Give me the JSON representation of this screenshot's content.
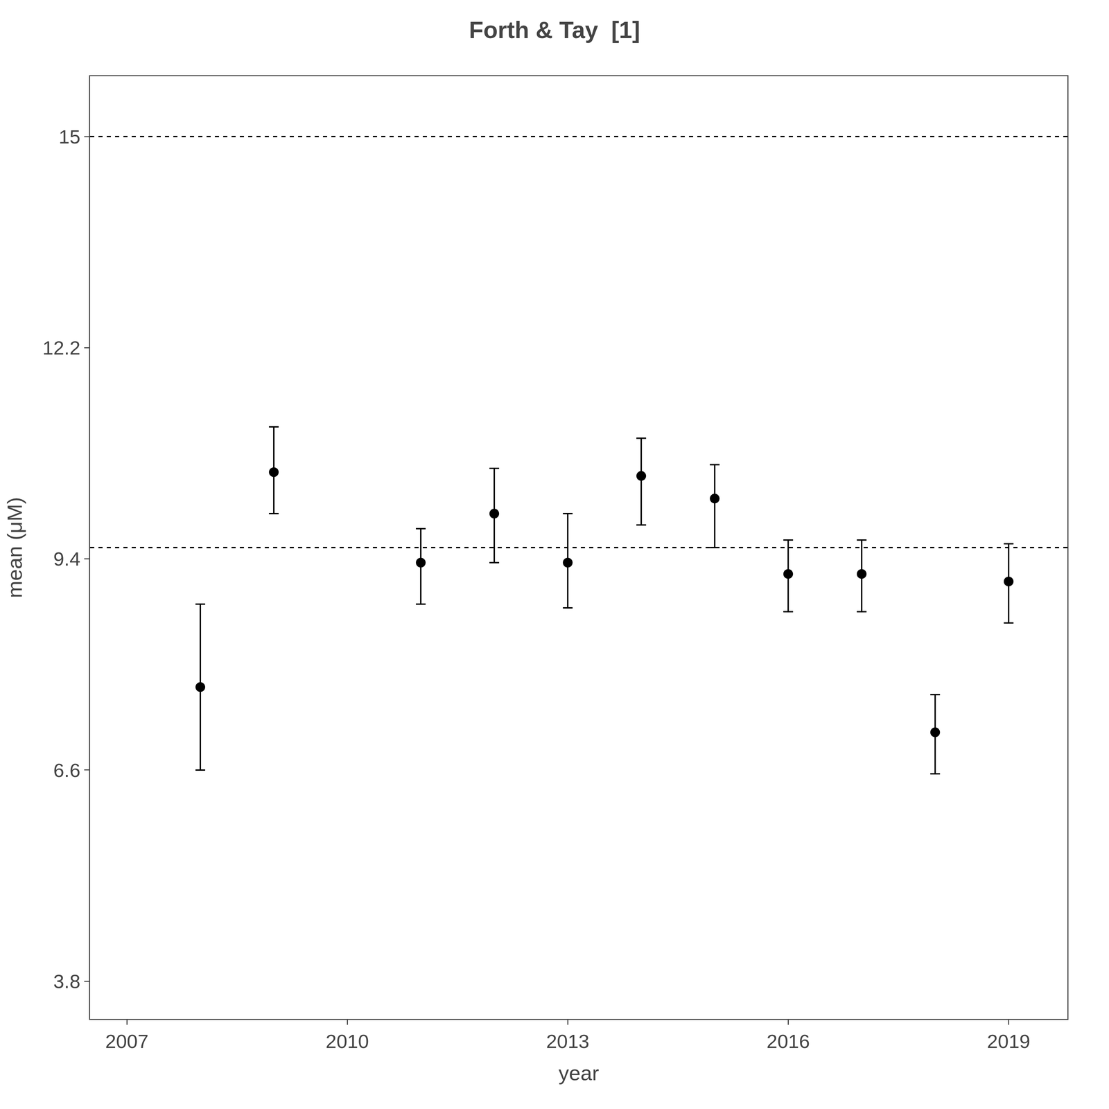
{
  "chart_data": {
    "type": "scatter",
    "title": "Forth & Tay  [1]",
    "x_label": "year",
    "y_label": "mean (μM)",
    "x": [
      2008,
      2009,
      2011,
      2012,
      2013,
      2014,
      2015,
      2016,
      2017,
      2018,
      2019
    ],
    "series": [
      {
        "values": [
          7.7,
          10.55,
          9.35,
          10.0,
          9.35,
          10.5,
          10.2,
          9.2,
          9.2,
          7.1,
          9.1
        ],
        "error_minus": [
          1.1,
          0.55,
          0.55,
          0.65,
          0.6,
          0.65,
          0.65,
          0.5,
          0.5,
          0.55,
          0.55
        ],
        "error_plus": [
          1.1,
          0.6,
          0.45,
          0.6,
          0.65,
          0.5,
          0.45,
          0.45,
          0.45,
          0.5,
          0.5
        ],
        "color": "black",
        "marker": "circle"
      }
    ],
    "reference_lines": [
      {
        "y": 15.0,
        "color": "black",
        "line_style": "dashed"
      },
      {
        "y": 9.55,
        "color": "black",
        "line_style": "dashed"
      }
    ],
    "xlim": [
      2006.5,
      2019.8
    ],
    "ylim": [
      3.3,
      15.8
    ],
    "xticks": [
      2007,
      2010,
      2013,
      2016,
      2019
    ],
    "yticks": [
      3.8,
      6.6,
      9.4,
      12.2,
      15.0
    ],
    "grid": false
  }
}
